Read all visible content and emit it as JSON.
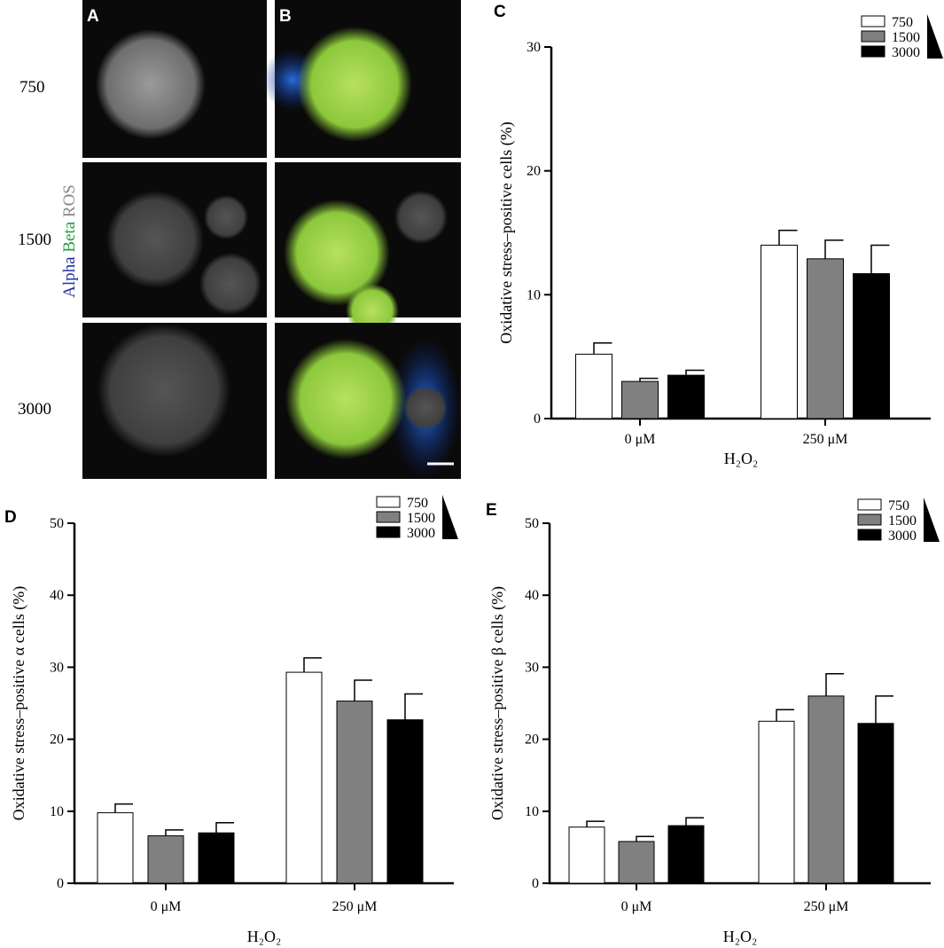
{
  "image_panel": {
    "panel_labels": [
      "A",
      "B"
    ],
    "row_labels": [
      "750",
      "1500",
      "3000"
    ],
    "stain_labels": [
      "Alpha",
      "Beta",
      "ROS"
    ]
  },
  "chart_data": [
    {
      "type": "bar",
      "panel_label": "C",
      "y_label": "Oxidative stress–positive cells (%)",
      "x_label": "H₂O₂",
      "categories": [
        "0 μM",
        "250 μM"
      ],
      "ylim": [
        0,
        30
      ],
      "yticks": [
        0,
        10,
        20,
        30
      ],
      "series": [
        {
          "name": "750",
          "color": "#ffffff",
          "values": [
            5.2,
            14.0
          ],
          "errors": [
            0.9,
            1.2
          ]
        },
        {
          "name": "1500",
          "color": "#808080",
          "values": [
            3.0,
            12.9
          ],
          "errors": [
            0.25,
            1.5
          ]
        },
        {
          "name": "3000",
          "color": "#000000",
          "values": [
            3.5,
            11.7
          ],
          "errors": [
            0.4,
            2.3
          ]
        }
      ]
    },
    {
      "type": "bar",
      "panel_label": "D",
      "y_label": "Oxidative stress–positive α cells (%)",
      "x_label": "H₂O₂",
      "categories": [
        "0 μM",
        "250 μM"
      ],
      "ylim": [
        0,
        50
      ],
      "yticks": [
        0,
        10,
        20,
        30,
        40,
        50
      ],
      "series": [
        {
          "name": "750",
          "color": "#ffffff",
          "values": [
            9.8,
            29.3
          ],
          "errors": [
            1.2,
            2.0
          ]
        },
        {
          "name": "1500",
          "color": "#808080",
          "values": [
            6.6,
            25.3
          ],
          "errors": [
            0.8,
            2.9
          ]
        },
        {
          "name": "3000",
          "color": "#000000",
          "values": [
            7.0,
            22.7
          ],
          "errors": [
            1.4,
            3.6
          ]
        }
      ]
    },
    {
      "type": "bar",
      "panel_label": "E",
      "y_label": "Oxidative stress–positive β cells (%)",
      "x_label": "H₂O₂",
      "categories": [
        "0 μM",
        "250 μM"
      ],
      "ylim": [
        0,
        50
      ],
      "yticks": [
        0,
        10,
        20,
        30,
        40,
        50
      ],
      "series": [
        {
          "name": "750",
          "color": "#ffffff",
          "values": [
            7.8,
            22.5
          ],
          "errors": [
            0.8,
            1.6
          ]
        },
        {
          "name": "1500",
          "color": "#808080",
          "values": [
            5.8,
            26.0
          ],
          "errors": [
            0.7,
            3.1
          ]
        },
        {
          "name": "3000",
          "color": "#000000",
          "values": [
            8.0,
            22.2
          ],
          "errors": [
            1.1,
            3.8
          ]
        }
      ]
    }
  ]
}
